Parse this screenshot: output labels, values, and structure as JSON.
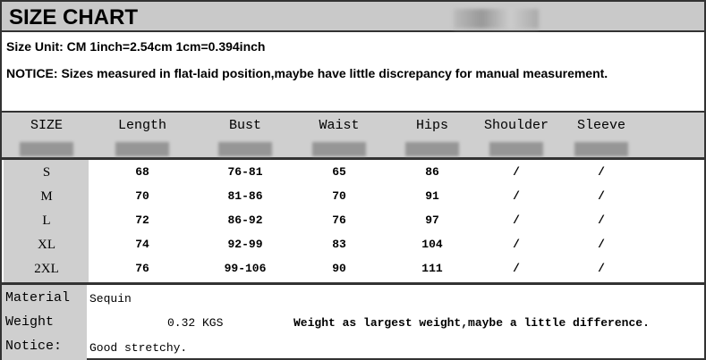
{
  "title": "SIZE CHART",
  "size_unit": "Size Unit: CM  1inch=2.54cm  1cm=0.394inch",
  "notice": "NOTICE: Sizes measured in flat-laid position,maybe have little discrepancy for manual measurement.",
  "table": {
    "headers": [
      "SIZE",
      "Length",
      "Bust",
      "Waist",
      "Hips",
      "Shoulder",
      "Sleeve"
    ],
    "rows": [
      [
        "S",
        "68",
        "76-81",
        "65",
        "86",
        "/",
        "/"
      ],
      [
        "M",
        "70",
        "81-86",
        "70",
        "91",
        "/",
        "/"
      ],
      [
        "L",
        "72",
        "86-92",
        "76",
        "97",
        "/",
        "/"
      ],
      [
        "XL",
        "74",
        "92-99",
        "83",
        "104",
        "/",
        "/"
      ],
      [
        "2XL",
        "76",
        "99-106",
        "90",
        "111",
        "/",
        "/"
      ]
    ]
  },
  "details": {
    "material_label": "Material",
    "material_value": "Sequin",
    "weight_label": "Weight",
    "weight_value": "0.32 KGS",
    "weight_note": "Weight as largest weight,maybe a little difference.",
    "notice_label": "Notice:",
    "notice_value": "Good stretchy."
  }
}
